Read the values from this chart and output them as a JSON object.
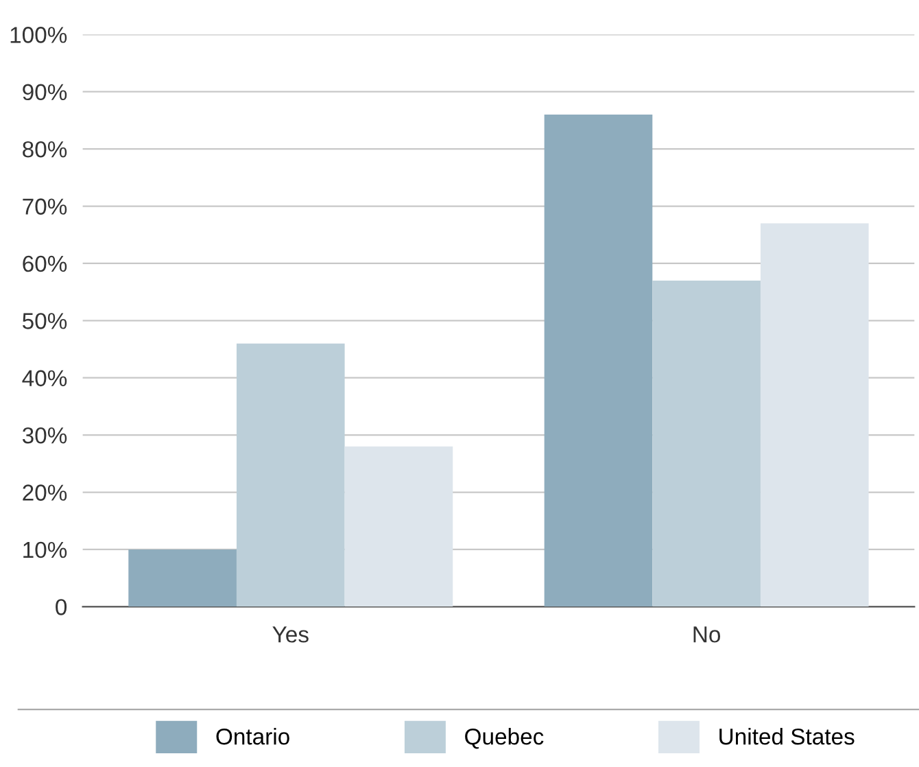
{
  "chart_data": {
    "type": "bar",
    "categories": [
      "Yes",
      "No"
    ],
    "series": [
      {
        "name": "Ontario",
        "color": "#8eacbd",
        "values": [
          10,
          86
        ]
      },
      {
        "name": "Quebec",
        "color": "#bccfd9",
        "values": [
          46,
          57
        ]
      },
      {
        "name": "United States",
        "color": "#dde5ec",
        "values": [
          28,
          67
        ]
      }
    ],
    "ylim": [
      0,
      100
    ],
    "yticks": [
      {
        "value": 0,
        "label": "0"
      },
      {
        "value": 10,
        "label": "10%"
      },
      {
        "value": 20,
        "label": "20%"
      },
      {
        "value": 30,
        "label": "30%"
      },
      {
        "value": 40,
        "label": "40%"
      },
      {
        "value": 50,
        "label": "50%"
      },
      {
        "value": 60,
        "label": "60%"
      },
      {
        "value": 70,
        "label": "70%"
      },
      {
        "value": 80,
        "label": "80%"
      },
      {
        "value": 90,
        "label": "90%"
      },
      {
        "value": 100,
        "label": "100%"
      }
    ],
    "grid": "y",
    "legend": "bottom"
  }
}
